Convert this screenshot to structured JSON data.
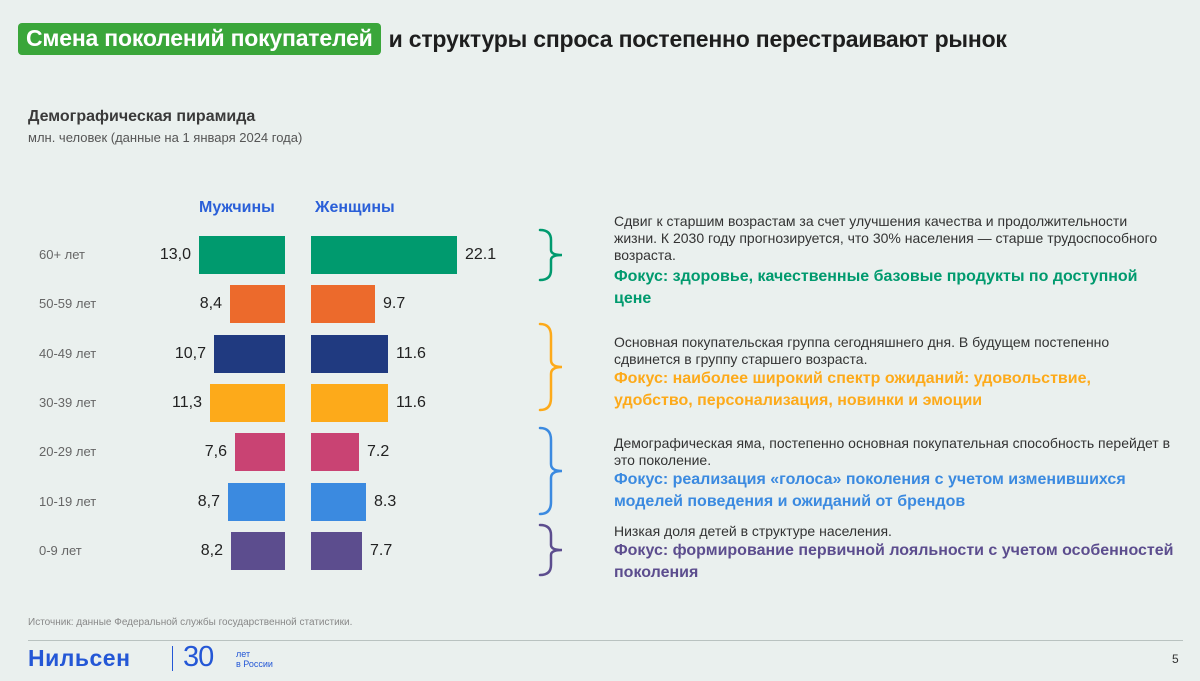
{
  "header": {
    "highlight": "Смена поколений покупателей",
    "rest": "и структуры спроса постепенно перестраивают рынок"
  },
  "chart_data": {
    "type": "bar",
    "title": "Демографическая пирамида",
    "subtitle": "млн. человек (данные на 1 января 2024 года)",
    "categories": [
      "60+ лет",
      "50-59 лет",
      "40-49 лет",
      "30-39 лет",
      "20-29 лет",
      "10-19 лет",
      "0-9 лет"
    ],
    "colors": [
      "#009a6e",
      "#ec6a2c",
      "#203a80",
      "#fdaa1a",
      "#c94373",
      "#3b8ae0",
      "#5c4d8e"
    ],
    "series": [
      {
        "name": "Мужчины",
        "values": [
          13.0,
          8.4,
          10.7,
          11.3,
          7.6,
          8.7,
          8.2
        ],
        "labels": [
          "13,0",
          "8,4",
          "10,7",
          "11,3",
          "7,6",
          "8,7",
          "8,2"
        ]
      },
      {
        "name": "Женщины",
        "values": [
          22.1,
          9.7,
          11.6,
          11.6,
          7.2,
          8.3,
          7.7
        ],
        "labels": [
          "22.1",
          "9.7",
          "11.6",
          "11.6",
          "7.2",
          "8.3",
          "7.7"
        ]
      }
    ]
  },
  "groups": [
    {
      "color": "#009a6e",
      "text": "Сдвиг к старшим возрастам за счет улучшения качества и продолжительности жизни. К 2030 году прогнозируется, что 30% населения — старше трудоспособного возраста.",
      "focus": "Фокус: здоровье, качественные базовые продукты по доступной цене"
    },
    {
      "color": "#fdaa1a",
      "text": "Основная покупательская группа сегодняшнего дня. В будущем постепенно сдвинется в группу старшего возраста.",
      "focus": "Фокус: наиболее широкий спектр ожиданий: удовольствие, удобство, персонализация, новинки и эмоции"
    },
    {
      "color": "#3b8ae0",
      "text": "Демографическая яма, постепенно основная покупательная способность перейдет в это поколение.",
      "focus": "Фокус: реализация «голоса» поколения с учетом изменившихся моделей поведения и ожиданий от брендов"
    },
    {
      "color": "#5c4d8e",
      "text": "Низкая доля детей в структуре населения.",
      "focus": "Фокус: формирование первичной лояльности с учетом особенностей поколения"
    }
  ],
  "footer": {
    "source": "Источник: данные Федеральной службы государственной статистики.",
    "logo": "Нильсен",
    "logo_num": "30",
    "logo_small_1": "лет",
    "logo_small_2": "в России",
    "page": "5"
  }
}
